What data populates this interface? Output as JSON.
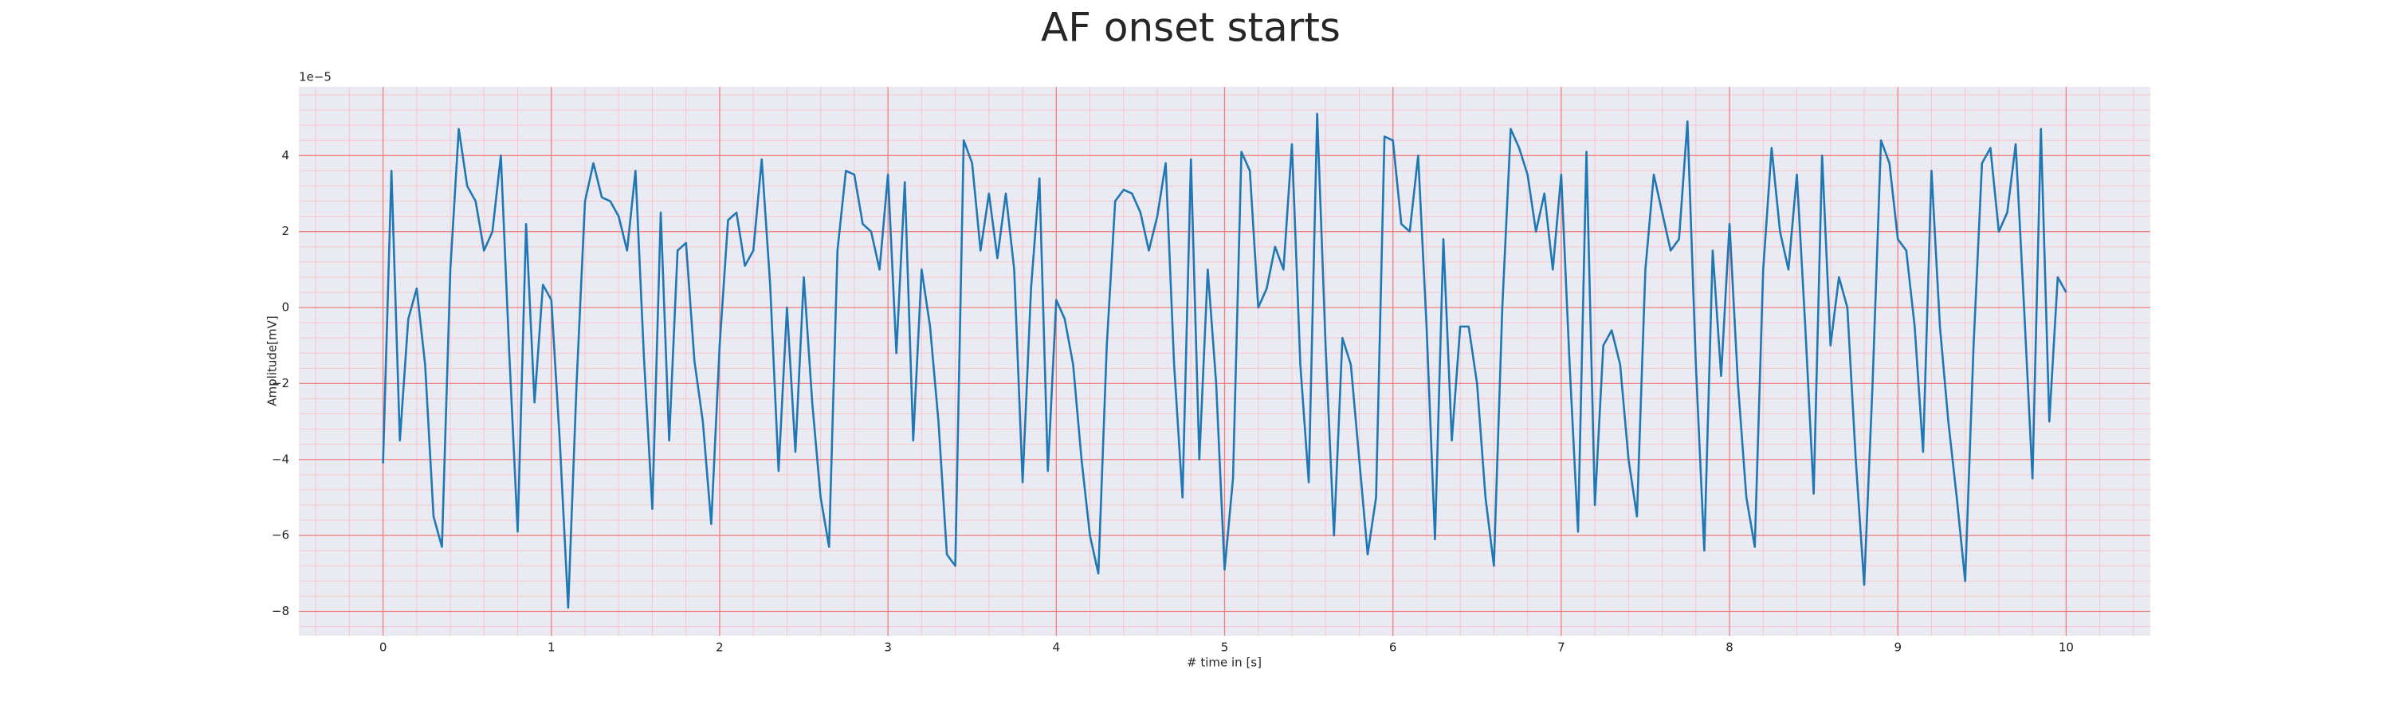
{
  "chart_data": {
    "type": "line",
    "title": "AF onset starts",
    "xlabel": "# time in [s]",
    "ylabel": "Amplitude[mV]",
    "offset_label": "1e−5",
    "color": "#1f77b4",
    "background": "#eaeaf2",
    "grid": true,
    "grid_color": "#f08080",
    "minor_grid": true,
    "minor_grid_color": "#f7c6cc",
    "minor_divisions": 5,
    "xlim": [
      -0.5,
      10.5
    ],
    "ylim": [
      -8.64,
      5.81
    ],
    "xticks": [
      0,
      1,
      2,
      3,
      4,
      5,
      6,
      7,
      8,
      9,
      10
    ],
    "yticks": [
      {
        "value": -8,
        "label": "−8"
      },
      {
        "value": -6,
        "label": "−6"
      },
      {
        "value": -4,
        "label": "−4"
      },
      {
        "value": -2,
        "label": "−2"
      },
      0,
      2,
      4
    ],
    "x": [
      0.0,
      0.05,
      0.1,
      0.15,
      0.2,
      0.25,
      0.3,
      0.35,
      0.4,
      0.45,
      0.5,
      0.55,
      0.6,
      0.65,
      0.7,
      0.75,
      0.8,
      0.85,
      0.9,
      0.95,
      1.0,
      1.05,
      1.1,
      1.15,
      1.2,
      1.25,
      1.3,
      1.35,
      1.4,
      1.45,
      1.5,
      1.55,
      1.6,
      1.65,
      1.7,
      1.75,
      1.8,
      1.85,
      1.9,
      1.95,
      2.0,
      2.05,
      2.1,
      2.15,
      2.2,
      2.25,
      2.3,
      2.35,
      2.4,
      2.45,
      2.5,
      2.55,
      2.6,
      2.65,
      2.7,
      2.75,
      2.8,
      2.85,
      2.9,
      2.95,
      3.0,
      3.05,
      3.1,
      3.15,
      3.2,
      3.25,
      3.3,
      3.35,
      3.4,
      3.45,
      3.5,
      3.55,
      3.6,
      3.65,
      3.7,
      3.75,
      3.8,
      3.85,
      3.9,
      3.95,
      4.0,
      4.05,
      4.1,
      4.15,
      4.2,
      4.25,
      4.3,
      4.35,
      4.4,
      4.45,
      4.5,
      4.55,
      4.6,
      4.65,
      4.7,
      4.75,
      4.8,
      4.85,
      4.9,
      4.95,
      5.0,
      5.05,
      5.1,
      5.15,
      5.2,
      5.25,
      5.3,
      5.35,
      5.4,
      5.45,
      5.5,
      5.55,
      5.6,
      5.65,
      5.7,
      5.75,
      5.8,
      5.85,
      5.9,
      5.95,
      6.0,
      6.05,
      6.1,
      6.15,
      6.2,
      6.25,
      6.3,
      6.35,
      6.4,
      6.45,
      6.5,
      6.55,
      6.6,
      6.65,
      6.7,
      6.75,
      6.8,
      6.85,
      6.9,
      6.95,
      7.0,
      7.05,
      7.1,
      7.15,
      7.2,
      7.25,
      7.3,
      7.35,
      7.4,
      7.45,
      7.5,
      7.55,
      7.6,
      7.65,
      7.7,
      7.75,
      7.8,
      7.85,
      7.9,
      7.95,
      8.0,
      8.05,
      8.1,
      8.15,
      8.2,
      8.25,
      8.3,
      8.35,
      8.4,
      8.45,
      8.5,
      8.55,
      8.6,
      8.65,
      8.7,
      8.75,
      8.8,
      8.85,
      8.9,
      8.95,
      9.0,
      9.05,
      9.1,
      9.15,
      9.2,
      9.25,
      9.3,
      9.35,
      9.4,
      9.45,
      9.5,
      9.55,
      9.6,
      9.65,
      9.7,
      9.75,
      9.8,
      9.85,
      9.9,
      9.95,
      10.0
    ],
    "values": [
      -4.1,
      3.6,
      -3.5,
      -0.3,
      0.5,
      -1.5,
      -5.5,
      -6.3,
      1.0,
      4.7,
      3.2,
      2.8,
      1.5,
      2.0,
      4.0,
      -1.2,
      -5.9,
      2.2,
      -2.5,
      0.6,
      0.2,
      -3.5,
      -7.9,
      -2.0,
      2.8,
      3.8,
      2.9,
      2.8,
      2.4,
      1.5,
      3.6,
      -1.3,
      -5.3,
      2.5,
      -3.5,
      1.5,
      1.7,
      -1.4,
      -3.0,
      -5.7,
      -1.0,
      2.3,
      2.5,
      1.1,
      1.5,
      3.9,
      0.6,
      -4.3,
      0.0,
      -3.8,
      0.8,
      -2.5,
      -5.0,
      -6.3,
      1.5,
      3.6,
      3.5,
      2.2,
      2.0,
      1.0,
      3.5,
      -1.2,
      3.3,
      -3.5,
      1.0,
      -0.5,
      -3.0,
      -6.5,
      -6.8,
      4.4,
      3.8,
      1.5,
      3.0,
      1.3,
      3.0,
      1.0,
      -4.6,
      0.5,
      3.4,
      -4.3,
      0.2,
      -0.3,
      -1.5,
      -4.0,
      -6.0,
      -7.0,
      -1.0,
      2.8,
      3.1,
      3.0,
      2.5,
      1.5,
      2.4,
      3.8,
      -1.5,
      -5.0,
      3.9,
      -4.0,
      1.0,
      -2.0,
      -6.9,
      -4.5,
      4.1,
      3.6,
      0.0,
      0.5,
      1.6,
      1.0,
      4.3,
      -1.5,
      -4.6,
      5.1,
      -1.0,
      -6.0,
      -0.8,
      -1.5,
      -4.0,
      -6.5,
      -5.0,
      4.5,
      4.4,
      2.2,
      2.0,
      4.0,
      -0.5,
      -6.1,
      1.8,
      -3.5,
      -0.5,
      -0.5,
      -2.0,
      -5.0,
      -6.8,
      0.0,
      4.7,
      4.2,
      3.5,
      2.0,
      3.0,
      1.0,
      3.5,
      -1.5,
      -5.9,
      4.1,
      -5.2,
      -1.0,
      -0.6,
      -1.5,
      -4.0,
      -5.5,
      1.0,
      3.5,
      2.5,
      1.5,
      1.8,
      4.9,
      -1.5,
      -6.4,
      1.5,
      -1.8,
      2.2,
      -2.0,
      -5.0,
      -6.3,
      1.0,
      4.2,
      2.0,
      1.0,
      3.5,
      -0.5,
      -4.9,
      4.0,
      -1.0,
      0.8,
      0.0,
      -4.0,
      -7.3,
      -2.0,
      4.4,
      3.8,
      1.8,
      1.5,
      -0.5,
      -3.8,
      3.6,
      -0.5,
      -3.0,
      -5.0,
      -7.2,
      -1.0,
      3.8,
      4.2,
      2.0,
      2.5,
      4.3,
      0.0,
      -4.5,
      4.7,
      -3.0,
      0.8,
      0.4
    ]
  }
}
